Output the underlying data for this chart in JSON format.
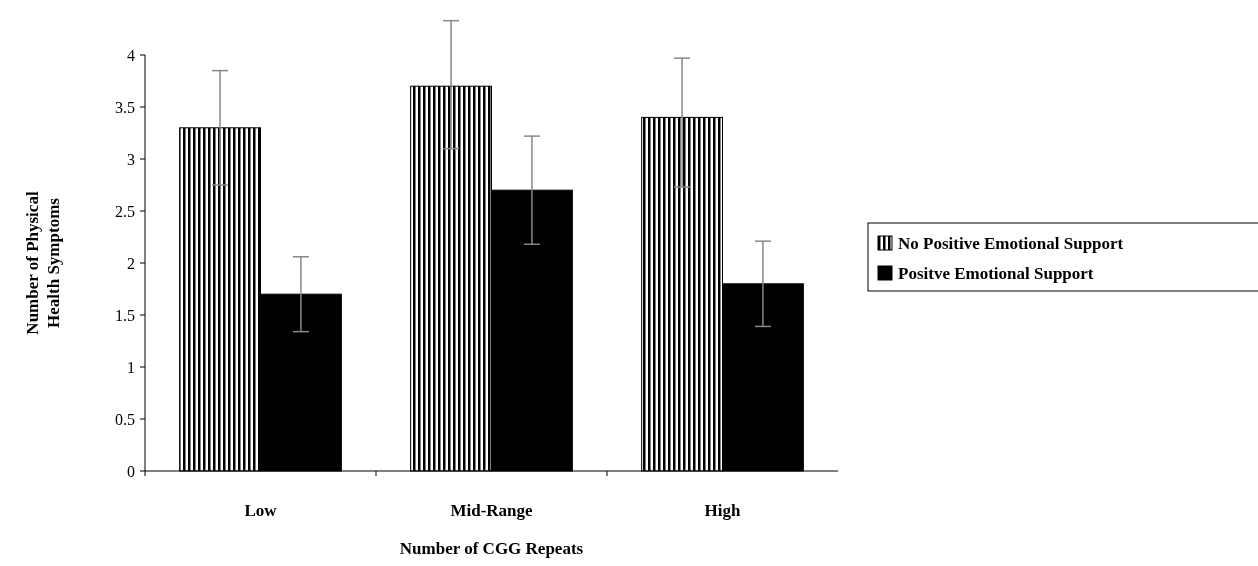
{
  "chart_data": {
    "type": "bar",
    "xlabel": "Number of CGG Repeats",
    "ylabel": "Number of Physical\nHealth Symptoms",
    "categories": [
      "Low",
      "Mid-Range",
      "High"
    ],
    "series": [
      {
        "name": "No Positive Emotional Support",
        "color": "#000000",
        "values": [
          3.3,
          3.7,
          3.4
        ],
        "errors": [
          [
            2.75,
            3.85
          ],
          [
            3.1,
            4.33
          ],
          [
            2.73,
            3.97
          ]
        ]
      },
      {
        "name": "Positve Emotional Support",
        "color": "#000000",
        "values": [
          1.7,
          2.7,
          1.8
        ],
        "errors": [
          0.36,
          0.52,
          0.41
        ]
      }
    ],
    "ylim": [
      0,
      4
    ],
    "yticks": [
      0,
      0.5,
      1,
      1.5,
      2,
      2.5,
      3,
      3.5,
      4
    ],
    "grid": false,
    "legend": "right"
  }
}
